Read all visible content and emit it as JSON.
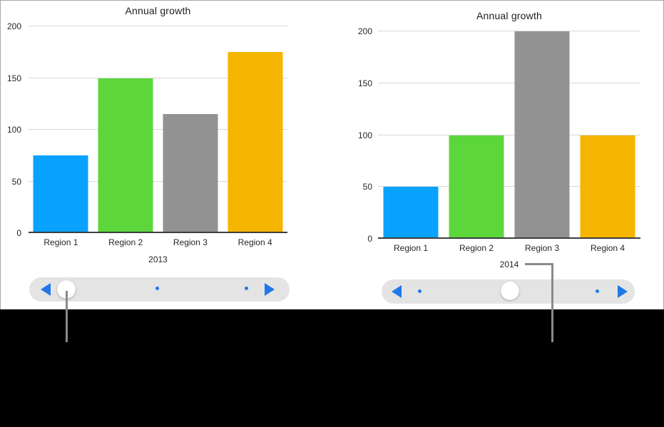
{
  "theme": {
    "accent": "#2077e8",
    "pill": "#e4e4e5",
    "callout": "#8a8a8a",
    "sheet_background": "#ffffff",
    "page_background": "#000000",
    "gridline_color": "#d8d8d8",
    "axis_color": "#3d3d3d"
  },
  "chart_data": [
    {
      "type": "bar",
      "title": "Annual growth",
      "xlabel": "2013",
      "ylabel": "",
      "categories": [
        "Region 1",
        "Region 2",
        "Region 3",
        "Region 4"
      ],
      "values": [
        75,
        150,
        115,
        175
      ],
      "colors": [
        "#0aa2ff",
        "#5cd63b",
        "#929292",
        "#f6b501"
      ],
      "ylim": [
        0,
        200
      ],
      "yticks": [
        0,
        50,
        100,
        150,
        200
      ],
      "grid": true,
      "legend": false
    },
    {
      "type": "bar",
      "title": "Annual growth",
      "xlabel": "2014",
      "ylabel": "",
      "categories": [
        "Region 1",
        "Region 2",
        "Region 3",
        "Region 4"
      ],
      "values": [
        50,
        100,
        200,
        100
      ],
      "colors": [
        "#0aa2ff",
        "#5cd63b",
        "#929292",
        "#f6b501"
      ],
      "ylim": [
        0,
        200
      ],
      "yticks": [
        0,
        50,
        100,
        150,
        200
      ],
      "grid": true,
      "legend": false
    }
  ],
  "sliders": [
    {
      "for_chart": "2013",
      "controls": [
        "previous-arrow",
        "knob",
        "page-dot",
        "page-dot",
        "next-arrow"
      ],
      "knob_position": "start"
    },
    {
      "for_chart": "2014",
      "controls": [
        "previous-arrow",
        "page-dot",
        "knob",
        "page-dot",
        "next-arrow"
      ],
      "knob_position": "center"
    }
  ]
}
